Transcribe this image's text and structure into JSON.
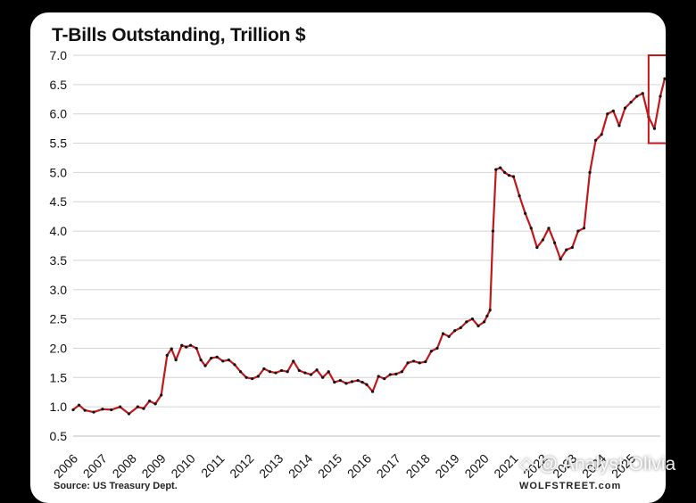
{
  "chart_data": {
    "type": "line",
    "title": "T-Bills Outstanding, Trillion $",
    "xlabel": "",
    "ylabel": "",
    "ylim": [
      0.5,
      7.0
    ],
    "xlim": [
      2006,
      2026
    ],
    "yticks": [
      "7.0",
      "6.5",
      "6.0",
      "5.5",
      "5.0",
      "4.5",
      "4.0",
      "3.5",
      "3.0",
      "2.5",
      "2.0",
      "1.5",
      "1.0",
      "0.5"
    ],
    "xticks": [
      "2006",
      "2007",
      "2008",
      "2009",
      "2010",
      "2011",
      "2012",
      "2013",
      "2014",
      "2015",
      "2016",
      "2017",
      "2018",
      "2019",
      "2020",
      "2021",
      "2022",
      "2023",
      "2024",
      "2025"
    ],
    "grid": true,
    "line_color": "#c0181c",
    "marker_color": "#111111",
    "highlight": {
      "x_range": [
        2025.6,
        2026.3
      ],
      "y_range": [
        5.5,
        7.0
      ],
      "color": "#c0181c"
    },
    "series": [
      {
        "name": "T-Bills Outstanding",
        "x": [
          2006.0,
          2006.2,
          2006.4,
          2006.7,
          2007.0,
          2007.3,
          2007.6,
          2007.9,
          2008.2,
          2008.4,
          2008.6,
          2008.8,
          2009.0,
          2009.2,
          2009.35,
          2009.5,
          2009.7,
          2009.85,
          2010.0,
          2010.2,
          2010.35,
          2010.5,
          2010.7,
          2010.9,
          2011.1,
          2011.3,
          2011.5,
          2011.7,
          2011.9,
          2012.1,
          2012.3,
          2012.5,
          2012.7,
          2012.9,
          2013.1,
          2013.3,
          2013.5,
          2013.7,
          2013.9,
          2014.1,
          2014.3,
          2014.5,
          2014.7,
          2014.9,
          2015.1,
          2015.3,
          2015.5,
          2015.7,
          2015.85,
          2016.0,
          2016.2,
          2016.4,
          2016.6,
          2016.8,
          2017.0,
          2017.2,
          2017.4,
          2017.6,
          2017.8,
          2018.0,
          2018.2,
          2018.4,
          2018.6,
          2018.8,
          2019.0,
          2019.2,
          2019.4,
          2019.6,
          2019.8,
          2020.0,
          2020.1,
          2020.2,
          2020.3,
          2020.4,
          2020.55,
          2020.7,
          2020.85,
          2021.0,
          2021.2,
          2021.4,
          2021.6,
          2021.8,
          2022.0,
          2022.2,
          2022.4,
          2022.6,
          2022.8,
          2023.0,
          2023.2,
          2023.4,
          2023.6,
          2023.8,
          2024.0,
          2024.2,
          2024.4,
          2024.6,
          2024.8,
          2025.0,
          2025.2,
          2025.4,
          2025.6,
          2025.8,
          2026.0,
          2026.15
        ],
        "values": [
          0.95,
          1.03,
          0.94,
          0.91,
          0.96,
          0.95,
          1.0,
          0.88,
          1.0,
          0.97,
          1.1,
          1.05,
          1.2,
          1.88,
          1.99,
          1.8,
          2.05,
          2.02,
          2.05,
          2.0,
          1.8,
          1.7,
          1.83,
          1.85,
          1.78,
          1.8,
          1.72,
          1.6,
          1.5,
          1.48,
          1.52,
          1.65,
          1.6,
          1.58,
          1.62,
          1.6,
          1.78,
          1.62,
          1.58,
          1.55,
          1.63,
          1.5,
          1.6,
          1.42,
          1.45,
          1.4,
          1.43,
          1.45,
          1.42,
          1.38,
          1.26,
          1.52,
          1.48,
          1.55,
          1.56,
          1.6,
          1.75,
          1.78,
          1.75,
          1.77,
          1.95,
          2.0,
          2.25,
          2.2,
          2.3,
          2.35,
          2.45,
          2.5,
          2.38,
          2.45,
          2.55,
          2.65,
          4.0,
          5.05,
          5.08,
          5.0,
          4.95,
          4.93,
          4.6,
          4.3,
          4.05,
          3.72,
          3.85,
          4.05,
          3.8,
          3.52,
          3.68,
          3.72,
          4.0,
          4.05,
          5.0,
          5.55,
          5.65,
          6.0,
          6.05,
          5.8,
          6.1,
          6.2,
          6.3,
          6.35,
          5.95,
          5.75,
          6.3,
          6.6
        ]
      }
    ]
  },
  "source_note": "Source: US Treasury Dept.",
  "logo_text": "WOLFSTREET.com",
  "watermark": "◇ @ Analyst Olivia"
}
